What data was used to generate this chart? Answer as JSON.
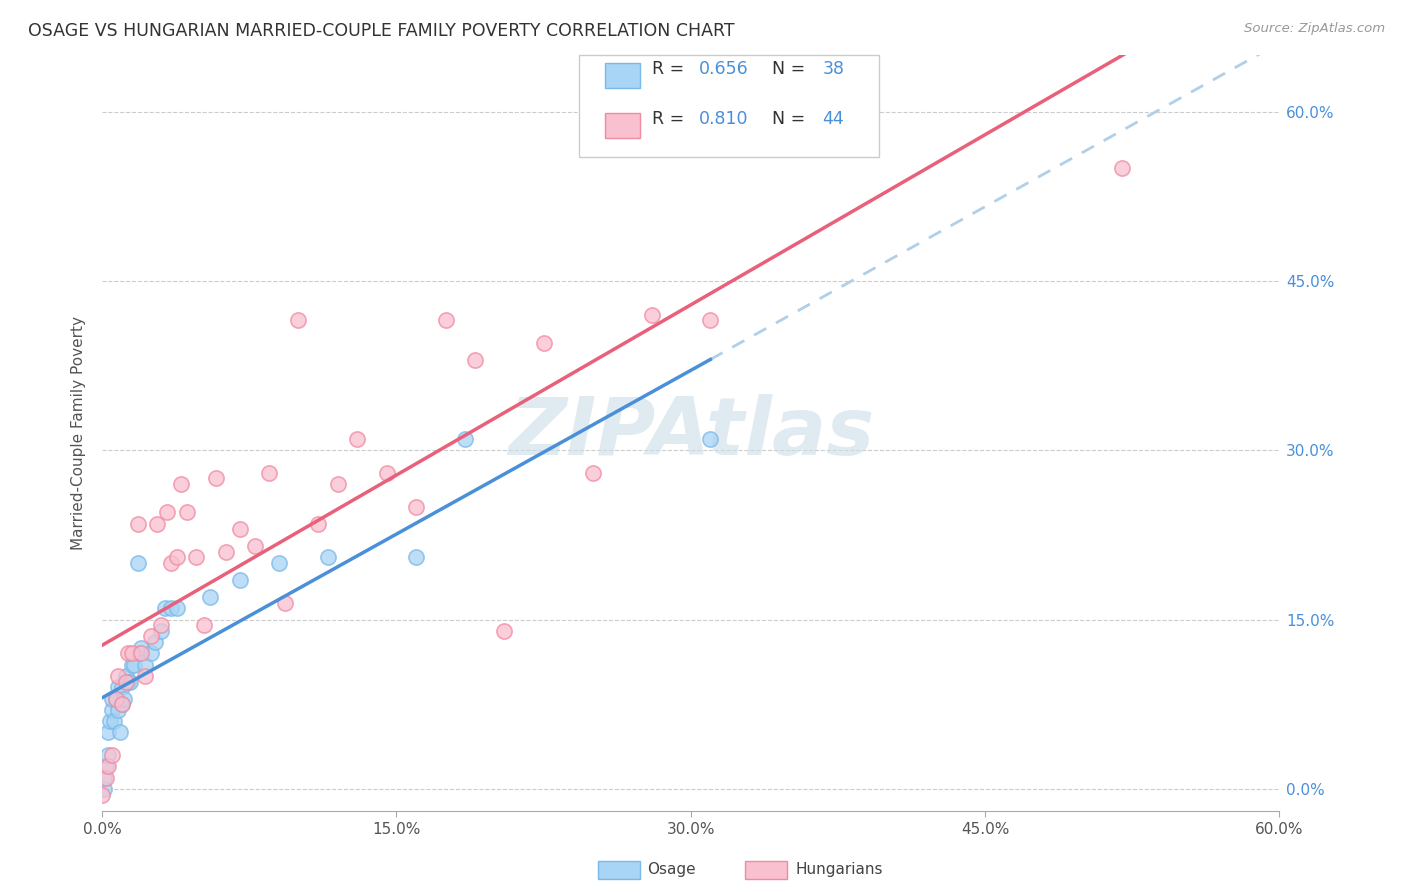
{
  "title": "OSAGE VS HUNGARIAN MARRIED-COUPLE FAMILY POVERTY CORRELATION CHART",
  "source": "Source: ZipAtlas.com",
  "ylabel": "Married-Couple Family Poverty",
  "xlim": [
    0.0,
    0.6
  ],
  "ylim": [
    -0.02,
    0.65
  ],
  "xtick_labels": [
    "0.0%",
    "15.0%",
    "30.0%",
    "45.0%",
    "60.0%"
  ],
  "xtick_vals": [
    0.0,
    0.15,
    0.3,
    0.45,
    0.6
  ],
  "ytick_labels_right": [
    "0.0%",
    "15.0%",
    "30.0%",
    "45.0%",
    "60.0%"
  ],
  "ytick_vals": [
    0.0,
    0.15,
    0.3,
    0.45,
    0.6
  ],
  "osage_color": "#a8d4f5",
  "osage_edge_color": "#7ab8e8",
  "hungarian_color": "#f9c0cf",
  "hungarian_edge_color": "#f08aa0",
  "osage_line_color": "#4a90d9",
  "hungarian_line_color": "#e8607a",
  "trend_dash_color": "#b0cfe8",
  "right_axis_color": "#4a90d9",
  "watermark_color": "#ccdee8",
  "watermark": "ZIPAtlas",
  "R_osage": "0.656",
  "N_osage": "38",
  "R_hungarian": "0.810",
  "N_hungarian": "44",
  "legend_text_color": "#333333",
  "legend_value_color": "#4a90d9",
  "osage_x": [
    0.001,
    0.001,
    0.002,
    0.003,
    0.003,
    0.004,
    0.005,
    0.005,
    0.006,
    0.007,
    0.008,
    0.008,
    0.009,
    0.01,
    0.01,
    0.011,
    0.012,
    0.013,
    0.014,
    0.015,
    0.016,
    0.018,
    0.019,
    0.02,
    0.022,
    0.025,
    0.027,
    0.03,
    0.032,
    0.035,
    0.038,
    0.055,
    0.07,
    0.09,
    0.115,
    0.16,
    0.185,
    0.31
  ],
  "osage_y": [
    0.0,
    0.01,
    0.02,
    0.03,
    0.05,
    0.06,
    0.07,
    0.08,
    0.06,
    0.08,
    0.07,
    0.09,
    0.05,
    0.075,
    0.09,
    0.08,
    0.1,
    0.095,
    0.095,
    0.11,
    0.11,
    0.2,
    0.12,
    0.125,
    0.11,
    0.12,
    0.13,
    0.14,
    0.16,
    0.16,
    0.16,
    0.17,
    0.185,
    0.2,
    0.205,
    0.205,
    0.31,
    0.31
  ],
  "hungarian_x": [
    0.0,
    0.002,
    0.003,
    0.005,
    0.007,
    0.008,
    0.01,
    0.012,
    0.013,
    0.015,
    0.018,
    0.02,
    0.022,
    0.025,
    0.028,
    0.03,
    0.033,
    0.035,
    0.038,
    0.04,
    0.043,
    0.048,
    0.052,
    0.058,
    0.063,
    0.07,
    0.078,
    0.085,
    0.093,
    0.1,
    0.11,
    0.12,
    0.13,
    0.145,
    0.16,
    0.175,
    0.19,
    0.205,
    0.225,
    0.25,
    0.28,
    0.31,
    0.345,
    0.52
  ],
  "hungarian_y": [
    -0.005,
    0.01,
    0.02,
    0.03,
    0.08,
    0.1,
    0.075,
    0.095,
    0.12,
    0.12,
    0.235,
    0.12,
    0.1,
    0.135,
    0.235,
    0.145,
    0.245,
    0.2,
    0.205,
    0.27,
    0.245,
    0.205,
    0.145,
    0.275,
    0.21,
    0.23,
    0.215,
    0.28,
    0.165,
    0.415,
    0.235,
    0.27,
    0.31,
    0.28,
    0.25,
    0.415,
    0.38,
    0.14,
    0.395,
    0.28,
    0.42,
    0.415,
    0.58,
    0.55
  ]
}
